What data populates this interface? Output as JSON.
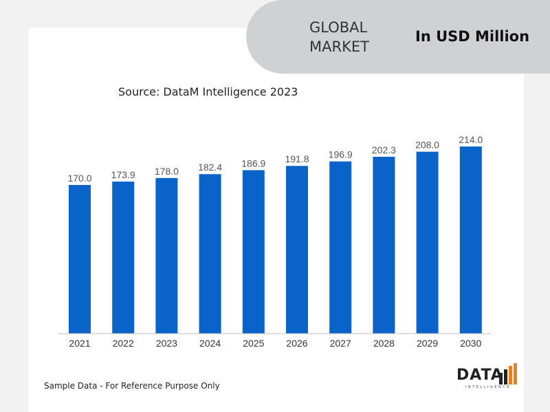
{
  "header": {
    "market_title": "GLOBAL\nMARKET",
    "unit": "In USD Million"
  },
  "source": "Source: DataM Intelligence 2023",
  "footnote": "Sample Data - For Reference Purpose Only",
  "logo": {
    "text": "DATA",
    "subtext": "INTELLIGENCE"
  },
  "colors": {
    "bar": "#0a63c9",
    "header_bg": "#cfd2d5",
    "logo_accent": "#e8801f"
  },
  "chart_data": {
    "type": "bar",
    "categories": [
      "2021",
      "2022",
      "2023",
      "2024",
      "2025",
      "2026",
      "2027",
      "2028",
      "2029",
      "2030"
    ],
    "values": [
      170.0,
      173.9,
      178.0,
      182.4,
      186.9,
      191.8,
      196.9,
      202.3,
      208.0,
      214.0
    ],
    "value_labels": [
      "170.0",
      "173.9",
      "178.0",
      "182.4",
      "186.9",
      "191.8",
      "196.9",
      "202.3",
      "208.0",
      "214.0"
    ],
    "title": "",
    "xlabel": "",
    "ylabel": "",
    "ylim": [
      0,
      214
    ],
    "grid": false,
    "legend": "none"
  }
}
